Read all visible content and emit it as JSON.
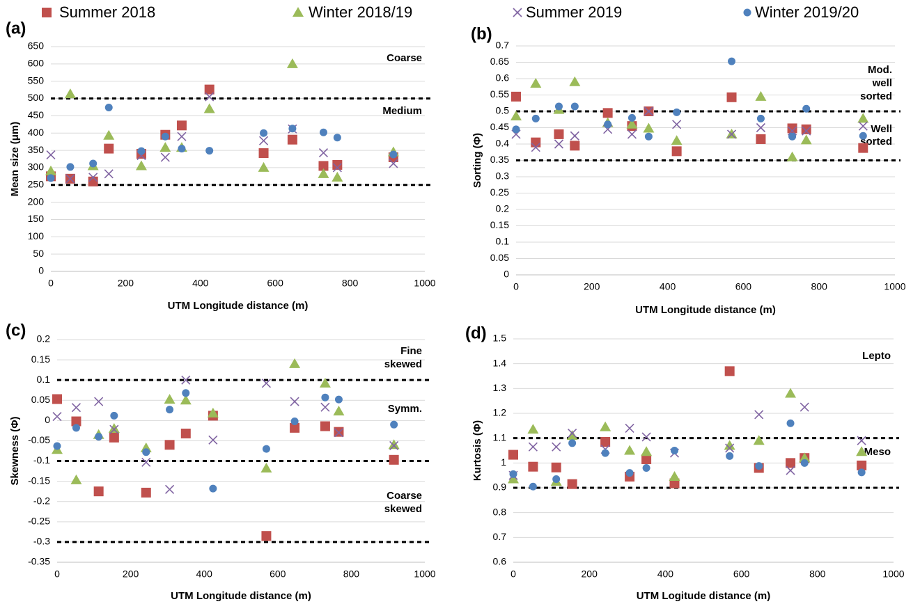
{
  "legend": [
    {
      "name": "Summer 2018",
      "color": "#c0504d",
      "marker": "square"
    },
    {
      "name": "Winter 2018/19",
      "color": "#9bbb59",
      "marker": "triangle"
    },
    {
      "name": "Summer 2019",
      "color": "#8064a2",
      "marker": "cross"
    },
    {
      "name": "Winter 2019/20",
      "color": "#4f81bd",
      "marker": "circle"
    }
  ],
  "chart_data": [
    {
      "type": "scatter",
      "panel_label": "(a)",
      "y_label": "Mean size (μm)",
      "x_label": "UTM Longitude distance (m)",
      "x": [
        0,
        52,
        113,
        155,
        242,
        306,
        350,
        424,
        569,
        646,
        729,
        766,
        916
      ],
      "xlim": [
        0,
        1000
      ],
      "xticks": [
        0,
        200,
        400,
        600,
        800,
        1000
      ],
      "ylim": [
        0,
        650
      ],
      "yticks": [
        0,
        50,
        100,
        150,
        200,
        250,
        300,
        350,
        400,
        450,
        500,
        550,
        600,
        650
      ],
      "grid": true,
      "reference_lines": [
        500,
        250
      ],
      "annotations": [
        [
          "Coarse"
        ],
        [
          "Medium"
        ]
      ],
      "series": [
        {
          "values": [
            275,
            268,
            260,
            355,
            340,
            395,
            422,
            526,
            342,
            381,
            305,
            308,
            330
          ]
        },
        {
          "values": [
            290,
            513,
            305,
            393,
            305,
            358,
            358,
            470,
            300,
            600,
            282,
            272,
            345
          ]
        },
        {
          "values": [
            337,
            268,
            272,
            282,
            335,
            330,
            390,
            505,
            378,
            412,
            343,
            300,
            312
          ]
        },
        {
          "values": [
            270,
            302,
            312,
            474,
            348,
            390,
            355,
            349,
            400,
            413,
            402,
            387,
            338
          ]
        }
      ]
    },
    {
      "type": "scatter",
      "panel_label": "(b)",
      "y_label": "Sorting (Φ)",
      "x_label": "UTM Longitude distance (m)",
      "x": [
        0,
        52,
        113,
        155,
        242,
        306,
        350,
        424,
        569,
        646,
        729,
        766,
        916
      ],
      "xlim": [
        0,
        1000
      ],
      "xticks": [
        0,
        200,
        400,
        600,
        800,
        1000
      ],
      "ylim": [
        0,
        0.7
      ],
      "yticks": [
        0,
        0.05,
        0.1,
        0.15,
        0.2,
        0.25,
        0.3,
        0.35,
        0.4,
        0.45,
        0.5,
        0.55,
        0.6,
        0.65,
        0.7
      ],
      "grid": true,
      "reference_lines": [
        0.5,
        0.35
      ],
      "annotations": [
        [
          "Mod.",
          "well",
          "sorted"
        ],
        [
          "Well",
          "sorted"
        ]
      ],
      "series": [
        {
          "values": [
            0.545,
            0.405,
            0.43,
            0.395,
            0.495,
            0.455,
            0.5,
            0.378,
            0.543,
            0.415,
            0.448,
            0.445,
            0.388
          ]
        },
        {
          "values": [
            0.485,
            0.585,
            0.505,
            0.59,
            0.465,
            0.46,
            0.448,
            0.41,
            0.43,
            0.545,
            0.36,
            0.412,
            0.478
          ]
        },
        {
          "values": [
            0.43,
            0.39,
            0.4,
            0.425,
            0.445,
            0.43,
            0.5,
            0.46,
            0.43,
            0.45,
            0.44,
            0.44,
            0.455
          ]
        },
        {
          "values": [
            0.445,
            0.478,
            0.515,
            0.515,
            0.46,
            0.48,
            0.423,
            0.497,
            0.653,
            0.478,
            0.423,
            0.508,
            0.425
          ]
        }
      ]
    },
    {
      "type": "scatter",
      "panel_label": "(c)",
      "y_label": "Skewness (Φ)",
      "x_label": "UTM Longitude distance (m)",
      "x": [
        0,
        52,
        113,
        155,
        242,
        306,
        350,
        424,
        569,
        646,
        729,
        766,
        916
      ],
      "xlim": [
        0,
        1000
      ],
      "xticks": [
        0,
        200,
        400,
        600,
        800,
        1000
      ],
      "ylim": [
        -0.35,
        0.2
      ],
      "yticks": [
        -0.35,
        -0.3,
        -0.25,
        -0.2,
        -0.15,
        -0.1,
        -0.05,
        0,
        0.05,
        0.1,
        0.15,
        0.2
      ],
      "grid": true,
      "reference_lines": [
        0.1,
        -0.1,
        -0.3
      ],
      "annotations": [
        [
          "Fine",
          "skewed"
        ],
        [
          "Symm."
        ],
        [
          "Coarse",
          "skewed"
        ]
      ],
      "series": [
        {
          "values": [
            0.053,
            -0.002,
            -0.175,
            -0.042,
            -0.178,
            -0.06,
            -0.032,
            0.012,
            -0.285,
            -0.018,
            -0.014,
            -0.028,
            -0.097
          ]
        },
        {
          "values": [
            -0.072,
            -0.147,
            -0.035,
            -0.02,
            -0.068,
            0.052,
            0.05,
            0.018,
            -0.118,
            0.14,
            0.092,
            0.023,
            -0.06
          ]
        },
        {
          "values": [
            0.01,
            0.032,
            0.047,
            -0.022,
            -0.103,
            -0.17,
            0.1,
            -0.048,
            0.092,
            0.047,
            0.033,
            -0.03,
            -0.062
          ]
        },
        {
          "values": [
            -0.063,
            -0.018,
            -0.04,
            0.012,
            -0.078,
            0.027,
            0.068,
            -0.168,
            -0.07,
            -0.002,
            0.057,
            0.052,
            -0.01
          ]
        }
      ]
    },
    {
      "type": "scatter",
      "panel_label": "(d)",
      "y_label": "Kurtosis (Φ)",
      "x_label": "UTM Logitude distance (m)",
      "x": [
        0,
        52,
        113,
        155,
        242,
        306,
        350,
        424,
        569,
        646,
        729,
        766,
        916
      ],
      "xlim": [
        0,
        1000
      ],
      "xticks": [
        0,
        200,
        400,
        600,
        800,
        1000
      ],
      "ylim": [
        0.6,
        1.5
      ],
      "yticks": [
        0.6,
        0.7,
        0.8,
        0.9,
        1,
        1.1,
        1.2,
        1.3,
        1.4,
        1.5
      ],
      "grid": true,
      "reference_lines": [
        1.1,
        0.9
      ],
      "annotations": [
        [
          "Lepto"
        ],
        [
          "Meso"
        ]
      ],
      "series": [
        {
          "values": [
            1.033,
            0.985,
            0.982,
            0.915,
            1.085,
            0.945,
            1.015,
            0.918,
            1.37,
            0.98,
            1.0,
            1.02,
            0.99
          ]
        },
        {
          "values": [
            0.935,
            1.135,
            0.925,
            1.11,
            1.145,
            1.05,
            1.045,
            0.945,
            1.07,
            1.09,
            1.28,
            1.02,
            1.045
          ]
        },
        {
          "values": [
            0.95,
            1.065,
            1.065,
            1.12,
            1.055,
            1.14,
            1.105,
            1.04,
            1.06,
            1.195,
            0.97,
            1.225,
            1.09
          ]
        },
        {
          "values": [
            0.955,
            0.905,
            0.935,
            1.08,
            1.04,
            0.96,
            0.98,
            1.05,
            1.028,
            0.988,
            1.16,
            1.0,
            0.962
          ]
        }
      ]
    }
  ]
}
